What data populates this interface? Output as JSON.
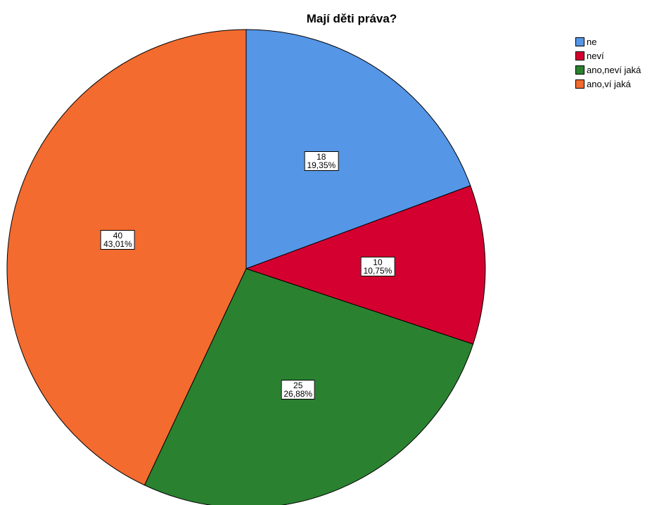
{
  "chart_data": {
    "type": "pie",
    "title": "Mají děti práva?",
    "slices": [
      {
        "name": "ne",
        "value": 18,
        "percent": "19,35%",
        "color": "#5596e6"
      },
      {
        "name": "neví",
        "value": 10,
        "percent": "10,75%",
        "color": "#d4002f"
      },
      {
        "name": "ano,neví jaká",
        "value": 25,
        "percent": "26,88%",
        "color": "#2a8230"
      },
      {
        "name": "ano,ví jaká",
        "value": 40,
        "percent": "43,01%",
        "color": "#f36b2f"
      }
    ],
    "legend_position": "top-right"
  }
}
